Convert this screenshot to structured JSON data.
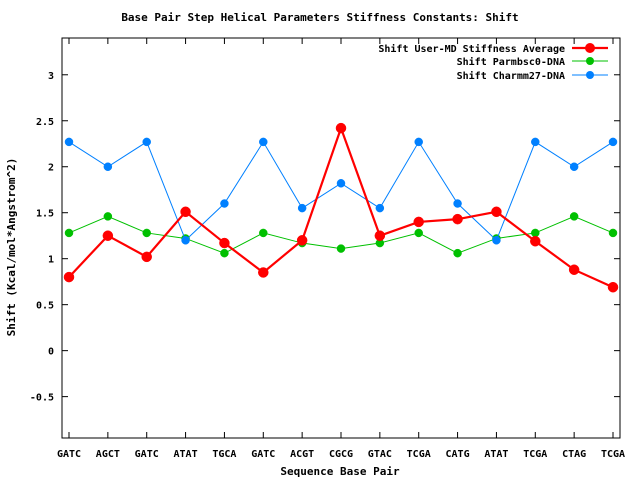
{
  "chart_data": {
    "type": "line",
    "title": "Base Pair Step Helical Parameters Stiffness Constants: Shift",
    "xlabel": "Sequence Base Pair",
    "ylabel": "Shift (Kcal/mol*Angstrom^2)",
    "categories": [
      "GATC",
      "AGCT",
      "GATC",
      "ATAT",
      "TGCA",
      "GATC",
      "ACGT",
      "CGCG",
      "GTAC",
      "TCGA",
      "CATG",
      "ATAT",
      "TCGA",
      "CTAG",
      "TCGA"
    ],
    "ylim": [
      -0.95,
      3.4
    ],
    "yticks": [
      -0.5,
      0,
      0.5,
      1,
      1.5,
      2,
      2.5,
      3
    ],
    "ytick_labels": [
      "-0.5",
      "0",
      "0.5",
      "1",
      "1.5",
      "2",
      "2.5",
      "3"
    ],
    "grid": false,
    "legend_position": "top-right",
    "series": [
      {
        "name": "Shift User-MD Stiffness Average",
        "color": "#ff0000",
        "values": [
          0.8,
          1.25,
          1.02,
          1.51,
          1.17,
          0.85,
          1.2,
          2.42,
          1.25,
          1.4,
          1.43,
          1.51,
          1.19,
          0.88,
          0.69
        ]
      },
      {
        "name": "Shift Parmbsc0-DNA",
        "color": "#00c000",
        "values": [
          1.28,
          1.46,
          1.28,
          1.22,
          1.06,
          1.28,
          1.17,
          1.11,
          1.17,
          1.28,
          1.06,
          1.22,
          1.28,
          1.46,
          1.28
        ]
      },
      {
        "name": "Shift Charmm27-DNA",
        "color": "#0080ff",
        "values": [
          2.27,
          2.0,
          2.27,
          1.2,
          1.6,
          2.27,
          1.55,
          1.82,
          1.55,
          2.27,
          1.6,
          1.2,
          2.27,
          2.0,
          2.27
        ]
      }
    ]
  }
}
